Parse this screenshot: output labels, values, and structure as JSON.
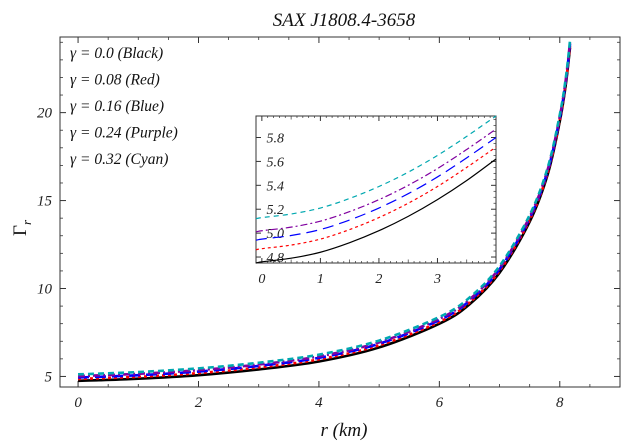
{
  "chart_data": {
    "type": "line",
    "title": "SAX J1808.4-3658",
    "xlabel": "r (km)",
    "ylabel": "Γ",
    "ylabel_sub": "r",
    "xlim": [
      -0.3,
      9.0
    ],
    "ylim": [
      4.4,
      24.3
    ],
    "xticks": [
      0,
      2,
      4,
      6,
      8
    ],
    "yticks": [
      5,
      10,
      15,
      20
    ],
    "grid": false,
    "legend_position": "top-left",
    "legend": [
      {
        "text": "γ = 0.0 (Black)",
        "color": "#000000"
      },
      {
        "text": "γ = 0.08 (Red)",
        "color": "#ff0000"
      },
      {
        "text": "γ = 0.16 (Blue)",
        "color": "#0000ff"
      },
      {
        "text": "γ = 0.24 (Purple)",
        "color": "#8000a0"
      },
      {
        "text": "γ = 0.32 (Cyan)",
        "color": "#00a8b0"
      }
    ],
    "series": [
      {
        "gamma": 0.0,
        "color": "#000000",
        "dash": "",
        "width": 1.6,
        "x": [
          0,
          1,
          2,
          3,
          4,
          5,
          6,
          6.5,
          7,
          7.5,
          7.8,
          8.0,
          8.1,
          8.17
        ],
        "y": [
          4.75,
          4.87,
          5.07,
          5.4,
          5.85,
          6.65,
          8.0,
          9.1,
          10.9,
          13.8,
          16.5,
          19.5,
          21.6,
          23.7
        ]
      },
      {
        "gamma": 0.08,
        "color": "#ff0000",
        "dash": "3,3",
        "width": 1.6,
        "x": [
          0,
          1,
          2,
          3,
          4,
          5,
          6,
          6.5,
          7,
          7.5,
          7.8,
          8.0,
          8.1,
          8.17
        ],
        "y": [
          4.86,
          4.98,
          5.19,
          5.51,
          5.97,
          6.77,
          8.1,
          9.2,
          11.0,
          13.9,
          16.6,
          19.6,
          21.7,
          23.8
        ]
      },
      {
        "gamma": 0.16,
        "color": "#0000ff",
        "dash": "11,6",
        "width": 1.6,
        "x": [
          0,
          1,
          2,
          3,
          4,
          5,
          6,
          6.5,
          7,
          7.5,
          7.8,
          8.0,
          8.1,
          8.17
        ],
        "y": [
          4.94,
          5.07,
          5.28,
          5.6,
          6.06,
          6.86,
          8.2,
          9.3,
          11.1,
          14.0,
          16.7,
          19.7,
          21.8,
          23.9
        ]
      },
      {
        "gamma": 0.24,
        "color": "#8000a0",
        "dash": "7,3,2,3",
        "width": 1.6,
        "x": [
          0,
          1,
          2,
          3,
          4,
          5,
          6,
          6.5,
          7,
          7.5,
          7.8,
          8.0,
          8.1,
          8.17
        ],
        "y": [
          5.02,
          5.15,
          5.36,
          5.68,
          6.14,
          6.94,
          8.28,
          9.38,
          11.18,
          14.08,
          16.78,
          19.78,
          21.88,
          24.0
        ]
      },
      {
        "gamma": 0.32,
        "color": "#00a8b0",
        "dash": "6,4",
        "width": 1.6,
        "x": [
          0,
          1,
          2,
          3,
          4,
          5,
          6,
          6.5,
          7,
          7.5,
          7.8,
          8.0,
          8.1,
          8.17
        ],
        "y": [
          5.12,
          5.25,
          5.46,
          5.78,
          6.24,
          7.04,
          8.38,
          9.48,
          11.28,
          14.18,
          16.88,
          19.88,
          21.98,
          24.1
        ]
      }
    ],
    "inset": {
      "xlim": [
        -0.1,
        4.0
      ],
      "ylim": [
        4.75,
        5.98
      ],
      "xticks": [
        0,
        1,
        2,
        3
      ],
      "yticks": [
        4.8,
        5.0,
        5.2,
        5.4,
        5.6,
        5.8
      ],
      "ytick_labels": [
        "4.8",
        "5.0",
        "5.2",
        "5.4",
        "5.6",
        "5.8"
      ],
      "series": [
        {
          "color": "#000000",
          "dash": "",
          "width": 1.2,
          "x": [
            -0.1,
            0,
            0.5,
            1,
            1.5,
            2,
            2.5,
            3,
            3.5,
            4.0
          ],
          "y": [
            4.75,
            4.76,
            4.79,
            4.84,
            4.92,
            5.02,
            5.14,
            5.28,
            5.44,
            5.62
          ]
        },
        {
          "color": "#ff0000",
          "dash": "3,3",
          "width": 1.2,
          "x": [
            -0.1,
            0,
            0.5,
            1,
            1.5,
            2,
            2.5,
            3,
            3.5,
            4.0
          ],
          "y": [
            4.86,
            4.87,
            4.9,
            4.95,
            5.03,
            5.13,
            5.25,
            5.39,
            5.55,
            5.72
          ]
        },
        {
          "color": "#0000ff",
          "dash": "11,6",
          "width": 1.2,
          "x": [
            -0.1,
            0,
            0.5,
            1,
            1.5,
            2,
            2.5,
            3,
            3.5,
            4.0
          ],
          "y": [
            4.94,
            4.95,
            4.98,
            5.03,
            5.11,
            5.21,
            5.33,
            5.47,
            5.63,
            5.8
          ]
        },
        {
          "color": "#8000a0",
          "dash": "7,3,2,3",
          "width": 1.2,
          "x": [
            -0.1,
            0,
            0.5,
            1,
            1.5,
            2,
            2.5,
            3,
            3.5,
            4.0
          ],
          "y": [
            5.01,
            5.02,
            5.05,
            5.1,
            5.18,
            5.28,
            5.4,
            5.54,
            5.7,
            5.87
          ]
        },
        {
          "color": "#00a8b0",
          "dash": "5,4",
          "width": 1.2,
          "x": [
            -0.1,
            0,
            0.5,
            1,
            1.5,
            2,
            2.5,
            3,
            3.5,
            4.0
          ],
          "y": [
            5.12,
            5.13,
            5.16,
            5.21,
            5.29,
            5.39,
            5.51,
            5.65,
            5.81,
            5.98
          ]
        }
      ]
    }
  }
}
